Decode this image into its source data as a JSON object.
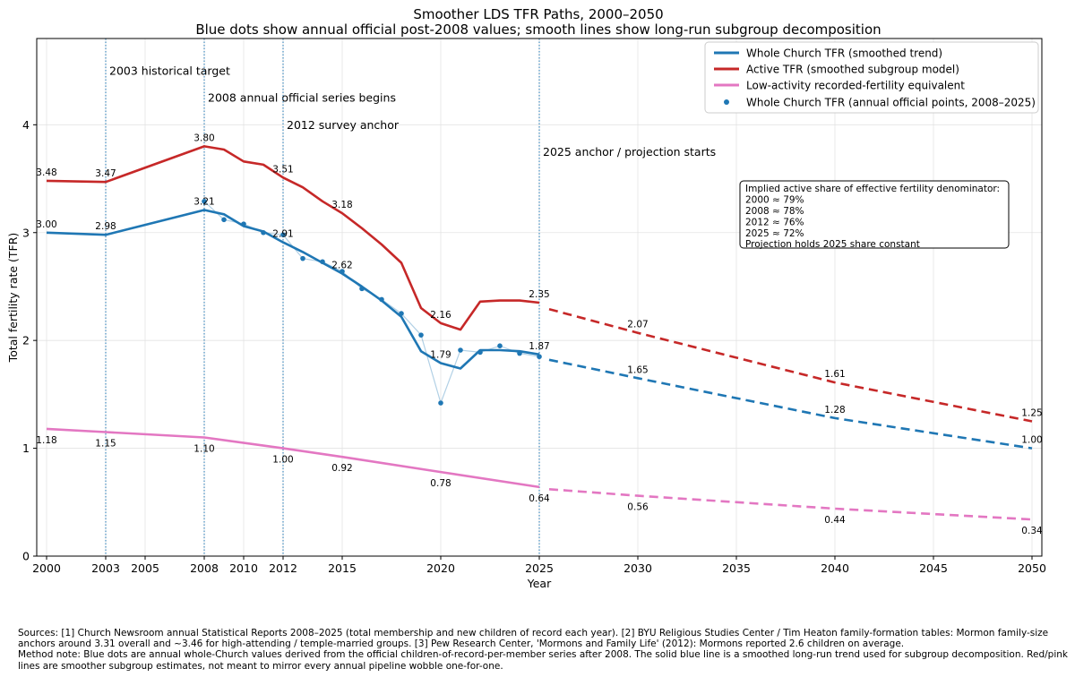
{
  "chart_data": {
    "type": "line",
    "title": "Smoother LDS TFR Paths, 2000–2050",
    "subtitle": "Blue dots show annual official post-2008 values; smooth lines show long-run subgroup decomposition",
    "xlabel": "Year",
    "ylabel": "Total fertility rate (TFR)",
    "xlim": [
      1999.5,
      2050.5
    ],
    "ylim": [
      0,
      4.8
    ],
    "x_ticks": [
      2000,
      2003,
      2005,
      2008,
      2010,
      2012,
      2015,
      2020,
      2025,
      2030,
      2035,
      2040,
      2045,
      2050
    ],
    "y_ticks": [
      0,
      1,
      2,
      3,
      4
    ],
    "grid": true,
    "legend_position": "top-right",
    "colors": {
      "whole": "#1f77b4",
      "active": "#c62828",
      "low": "#e377c2",
      "vline": "#1f77b4"
    },
    "series": [
      {
        "name": "Whole Church TFR (smoothed trend)",
        "key": "whole",
        "x": [
          2000,
          2003,
          2008,
          2009,
          2010,
          2011,
          2012,
          2013,
          2014,
          2015,
          2016,
          2017,
          2018,
          2019,
          2020,
          2021,
          2022,
          2023,
          2024,
          2025
        ],
        "y": [
          3.0,
          2.98,
          3.21,
          3.17,
          3.06,
          3.01,
          2.91,
          2.82,
          2.72,
          2.62,
          2.5,
          2.37,
          2.22,
          1.9,
          1.79,
          1.74,
          1.91,
          1.91,
          1.9,
          1.87
        ]
      },
      {
        "name": "Active TFR (smoothed subgroup model)",
        "key": "active",
        "x": [
          2000,
          2003,
          2008,
          2009,
          2010,
          2011,
          2012,
          2013,
          2014,
          2015,
          2016,
          2017,
          2018,
          2019,
          2020,
          2021,
          2022,
          2023,
          2024,
          2025
        ],
        "y": [
          3.48,
          3.47,
          3.8,
          3.77,
          3.66,
          3.63,
          3.51,
          3.42,
          3.29,
          3.18,
          3.04,
          2.89,
          2.72,
          2.3,
          2.16,
          2.1,
          2.36,
          2.37,
          2.37,
          2.35
        ]
      },
      {
        "name": "Low-activity recorded-fertility equivalent",
        "key": "low",
        "x": [
          2000,
          2003,
          2008,
          2012,
          2015,
          2020,
          2025
        ],
        "y": [
          1.18,
          1.15,
          1.1,
          1.0,
          0.92,
          0.78,
          0.64
        ]
      },
      {
        "name": "Whole Church TFR (annual official points, 2008–2025)",
        "key": "points",
        "x": [
          2008,
          2009,
          2010,
          2011,
          2012,
          2013,
          2014,
          2015,
          2016,
          2017,
          2018,
          2019,
          2020,
          2021,
          2022,
          2023,
          2024,
          2025
        ],
        "y": [
          3.29,
          3.12,
          3.08,
          3.0,
          2.98,
          2.76,
          2.73,
          2.64,
          2.48,
          2.38,
          2.25,
          2.05,
          1.42,
          1.91,
          1.89,
          1.95,
          1.88,
          1.85
        ]
      }
    ],
    "projections": [
      {
        "key": "active",
        "x": [
          2025.5,
          2030,
          2040,
          2050
        ],
        "y": [
          2.29,
          2.07,
          1.61,
          1.25
        ]
      },
      {
        "key": "whole",
        "x": [
          2025.5,
          2030,
          2040,
          2050
        ],
        "y": [
          1.82,
          1.65,
          1.28,
          1.0
        ]
      },
      {
        "key": "low",
        "x": [
          2025.5,
          2030,
          2040,
          2050
        ],
        "y": [
          0.62,
          0.56,
          0.44,
          0.34
        ]
      }
    ],
    "data_labels": [
      {
        "x": 2000,
        "y": 3.48,
        "text": "3.48",
        "pos": "above"
      },
      {
        "x": 2003,
        "y": 3.47,
        "text": "3.47",
        "pos": "above"
      },
      {
        "x": 2008,
        "y": 3.8,
        "text": "3.80",
        "pos": "above"
      },
      {
        "x": 2012,
        "y": 3.51,
        "text": "3.51",
        "pos": "above"
      },
      {
        "x": 2015,
        "y": 3.18,
        "text": "3.18",
        "pos": "above"
      },
      {
        "x": 2020,
        "y": 2.16,
        "text": "2.16",
        "pos": "above"
      },
      {
        "x": 2025,
        "y": 2.35,
        "text": "2.35",
        "pos": "above"
      },
      {
        "x": 2030,
        "y": 2.07,
        "text": "2.07",
        "pos": "above"
      },
      {
        "x": 2040,
        "y": 1.61,
        "text": "1.61",
        "pos": "above"
      },
      {
        "x": 2050,
        "y": 1.25,
        "text": "1.25",
        "pos": "above"
      },
      {
        "x": 2000,
        "y": 3.0,
        "text": "3.00",
        "pos": "above"
      },
      {
        "x": 2003,
        "y": 2.98,
        "text": "2.98",
        "pos": "above"
      },
      {
        "x": 2008,
        "y": 3.21,
        "text": "3.21",
        "pos": "above"
      },
      {
        "x": 2012,
        "y": 2.91,
        "text": "2.91",
        "pos": "above"
      },
      {
        "x": 2015,
        "y": 2.62,
        "text": "2.62",
        "pos": "above"
      },
      {
        "x": 2020,
        "y": 1.79,
        "text": "1.79",
        "pos": "above"
      },
      {
        "x": 2025,
        "y": 1.87,
        "text": "1.87",
        "pos": "above"
      },
      {
        "x": 2030,
        "y": 1.65,
        "text": "1.65",
        "pos": "above"
      },
      {
        "x": 2040,
        "y": 1.28,
        "text": "1.28",
        "pos": "above"
      },
      {
        "x": 2050,
        "y": 1.0,
        "text": "1.00",
        "pos": "above"
      },
      {
        "x": 2000,
        "y": 1.18,
        "text": "1.18",
        "pos": "below"
      },
      {
        "x": 2003,
        "y": 1.15,
        "text": "1.15",
        "pos": "below"
      },
      {
        "x": 2008,
        "y": 1.1,
        "text": "1.10",
        "pos": "below"
      },
      {
        "x": 2012,
        "y": 1.0,
        "text": "1.00",
        "pos": "below"
      },
      {
        "x": 2015,
        "y": 0.92,
        "text": "0.92",
        "pos": "below"
      },
      {
        "x": 2020,
        "y": 0.78,
        "text": "0.78",
        "pos": "below"
      },
      {
        "x": 2025,
        "y": 0.64,
        "text": "0.64",
        "pos": "below"
      },
      {
        "x": 2030,
        "y": 0.56,
        "text": "0.56",
        "pos": "below"
      },
      {
        "x": 2040,
        "y": 0.44,
        "text": "0.44",
        "pos": "below"
      },
      {
        "x": 2050,
        "y": 0.34,
        "text": "0.34",
        "pos": "below"
      }
    ],
    "vlines": [
      {
        "x": 2003,
        "label": "2003 historical target",
        "label_y": 4.5
      },
      {
        "x": 2008,
        "label": "2008 annual official series begins",
        "label_y": 4.25
      },
      {
        "x": 2012,
        "label": "2012 survey anchor",
        "label_y": 4.0
      },
      {
        "x": 2025,
        "label": "2025 anchor / projection starts",
        "label_y": 3.75
      }
    ],
    "annotation_box": {
      "lines": [
        "Implied active share of effective fertility denominator:",
        "2000 ≈ 79%",
        "2008 ≈ 78%",
        "2012 ≈ 76%",
        "2025 ≈ 72%",
        "Projection holds 2025 share constant"
      ]
    }
  },
  "footer": {
    "sources": "Sources: [1] Church Newsroom annual Statistical Reports 2008–2025 (total membership and new children of record each year).  [2] BYU Religious Studies Center / Tim Heaton family-formation tables: Mormon family-size anchors around 3.31 overall and ~3.46 for high-attending / temple-married groups.  [3] Pew Research Center, 'Mormons and Family Life' (2012): Mormons reported 2.6 children on average.",
    "method": "Method note: Blue dots are annual whole-Church values derived from the official children-of-record-per-member series after 2008. The solid blue line is a smoothed long-run trend used for subgroup decomposition. Red/pink lines are smoother subgroup estimates, not meant to mirror every annual pipeline wobble one-for-one."
  }
}
